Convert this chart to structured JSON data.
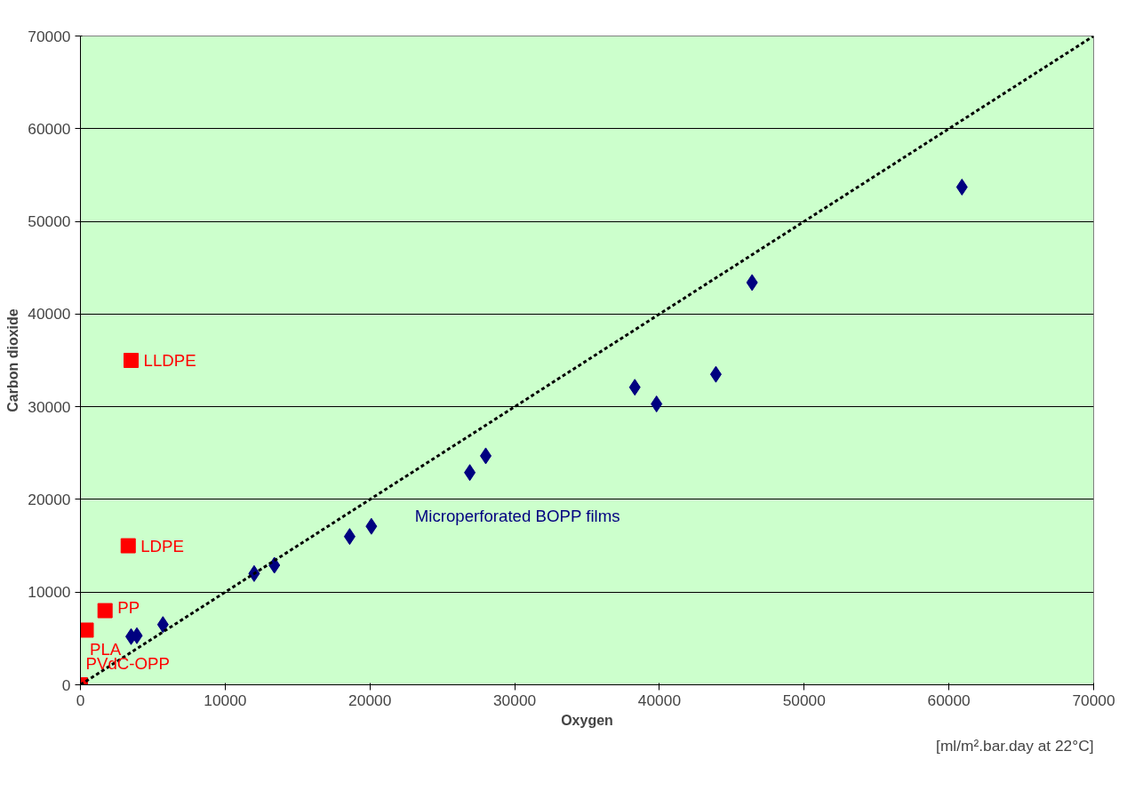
{
  "chart_data": {
    "type": "scatter",
    "xlabel": "Oxygen",
    "ylabel": "Carbon dioxide",
    "xlim": [
      0,
      70000
    ],
    "ylim": [
      0,
      70000
    ],
    "xticks": [
      0,
      10000,
      20000,
      30000,
      40000,
      50000,
      60000,
      70000
    ],
    "yticks": [
      0,
      10000,
      20000,
      30000,
      40000,
      50000,
      60000,
      70000
    ],
    "grid": "y",
    "series": [
      {
        "marker": "diamond",
        "color": "#000080",
        "x": [
          3500,
          3900,
          5700,
          12000,
          13400,
          18600,
          20100,
          26900,
          28000,
          38300,
          39800,
          43900,
          46400,
          60900
        ],
        "values": [
          5200,
          5300,
          6500,
          12000,
          12900,
          16000,
          17100,
          22900,
          24700,
          32100,
          30300,
          33500,
          43400,
          53700
        ]
      },
      {
        "marker": "square",
        "color": "#ff0000",
        "x": [
          3500,
          3300,
          1700,
          400,
          0
        ],
        "values": [
          35000,
          15000,
          8000,
          5900,
          0
        ]
      },
      {
        "type": "line",
        "marker": "none",
        "line_style": "dashed",
        "color": "#000000",
        "x": [
          0,
          70000
        ],
        "values": [
          0,
          70000
        ]
      }
    ],
    "annotations": [
      {
        "text": "LLDPE",
        "x": 3500,
        "y": 35000
      },
      {
        "text": "LDPE",
        "x": 3300,
        "y": 15000
      },
      {
        "text": "PP",
        "x": 1700,
        "y": 8000
      },
      {
        "text": "PLA",
        "x": 400,
        "y": 5900
      },
      {
        "text": "PVdC-OPP",
        "x": 0,
        "y": 0
      },
      "Microperforated BOPP films",
      "[ml/m².bar.day at 22°C]"
    ]
  }
}
